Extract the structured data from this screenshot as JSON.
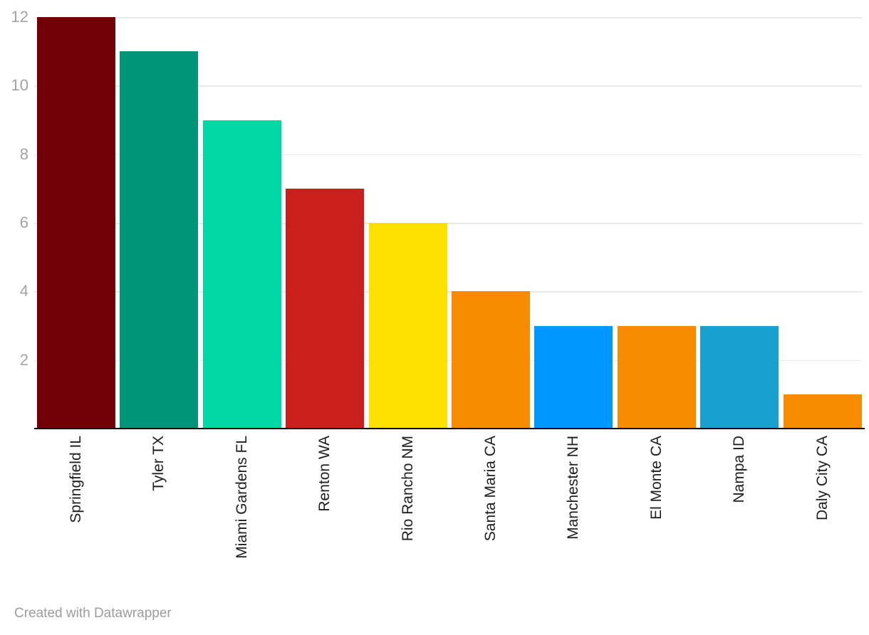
{
  "chart_data": {
    "type": "bar",
    "title": "",
    "xlabel": "",
    "ylabel": "",
    "categories": [
      "Springfield IL",
      "Tyler TX",
      "Miami Gardens FL",
      "Renton WA",
      "Rio Rancho NM",
      "Santa Maria CA",
      "Manchester NH",
      "El Monte CA",
      "Nampa ID",
      "Daly City CA"
    ],
    "values": [
      12,
      11,
      9,
      7,
      6,
      4,
      3,
      3,
      3,
      1
    ],
    "bar_colors": [
      "#700005",
      "#009478",
      "#00d9a4",
      "#ca1f1b",
      "#ffe100",
      "#f88c00",
      "#0099ff",
      "#f88c00",
      "#18a0ce",
      "#f88c00"
    ],
    "y_ticks": [
      2,
      4,
      6,
      8,
      10,
      12
    ],
    "ylim": [
      0,
      12
    ],
    "grid": "horizontal",
    "legend": "none"
  },
  "colors": {
    "background": "#ffffff",
    "gridline": "#e8e8e8",
    "axis_line": "#000000",
    "y_tick_label": "#a3a3a3",
    "x_label": "#1d1d1d",
    "footer_text": "#9c9c9c"
  },
  "footer": {
    "text": "Created with Datawrapper"
  }
}
